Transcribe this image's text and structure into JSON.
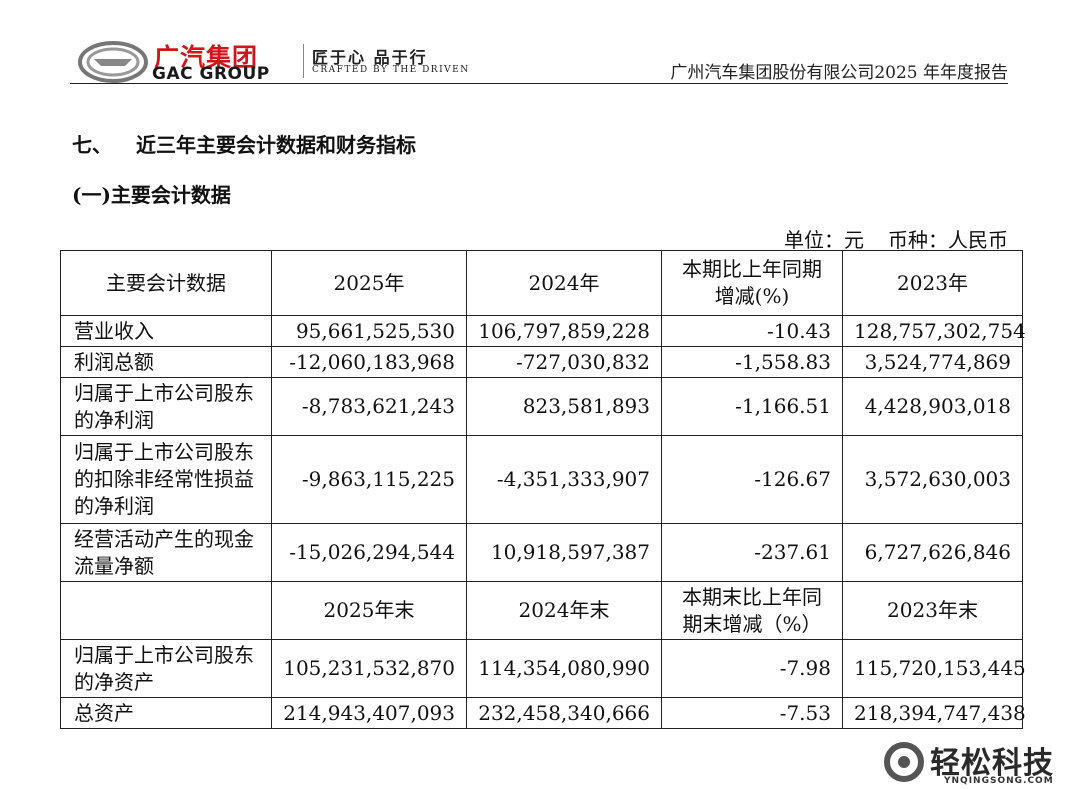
{
  "header": {
    "logo_cn": "广汽集团",
    "logo_en": "GAC GROUP",
    "slogan": "匠于心  品于行",
    "slogan_en": "CRAFTED BY THE DRIVEN",
    "report_title": "广州汽车集团股份有限公司2025 年年度报告"
  },
  "section": {
    "number": "七、",
    "title": "近三年主要会计数据和财务指标",
    "subtitle": "(一)主要会计数据",
    "unit_label": "单位：元",
    "currency_label": "币种：人民币"
  },
  "table": {
    "header1": [
      "主要会计数据",
      "2025年",
      "2024年",
      "本期比上年同期增减(%)",
      "2023年"
    ],
    "rows1": [
      [
        "营业收入",
        "95,661,525,530",
        "106,797,859,228",
        "-10.43",
        "128,757,302,754"
      ],
      [
        "利润总额",
        "-12,060,183,968",
        "-727,030,832",
        "-1,558.83",
        "3,524,774,869"
      ],
      [
        "归属于上市公司股东的净利润",
        "-8,783,621,243",
        "823,581,893",
        "-1,166.51",
        "4,428,903,018"
      ],
      [
        "归属于上市公司股东的扣除非经常性损益的净利润",
        "-9,863,115,225",
        "-4,351,333,907",
        "-126.67",
        "3,572,630,003"
      ],
      [
        "经营活动产生的现金流量净额",
        "-15,026,294,544",
        "10,918,597,387",
        "-237.61",
        "6,727,626,846"
      ]
    ],
    "header2": [
      "",
      "2025年末",
      "2024年末",
      "本期末比上年同期末增减（%）",
      "2023年末"
    ],
    "rows2": [
      [
        "归属于上市公司股东的净资产",
        "105,231,532,870",
        "114,354,080,990",
        "-7.98",
        "115,720,153,445"
      ],
      [
        "总资产",
        "214,943,407,093",
        "232,458,340,666",
        "-7.53",
        "218,394,747,438"
      ]
    ]
  },
  "watermark": {
    "cn": "轻松科技",
    "en": "YNQINGSONG.COM"
  },
  "colors": {
    "brand_red": "#d4141c",
    "text": "#111111"
  }
}
